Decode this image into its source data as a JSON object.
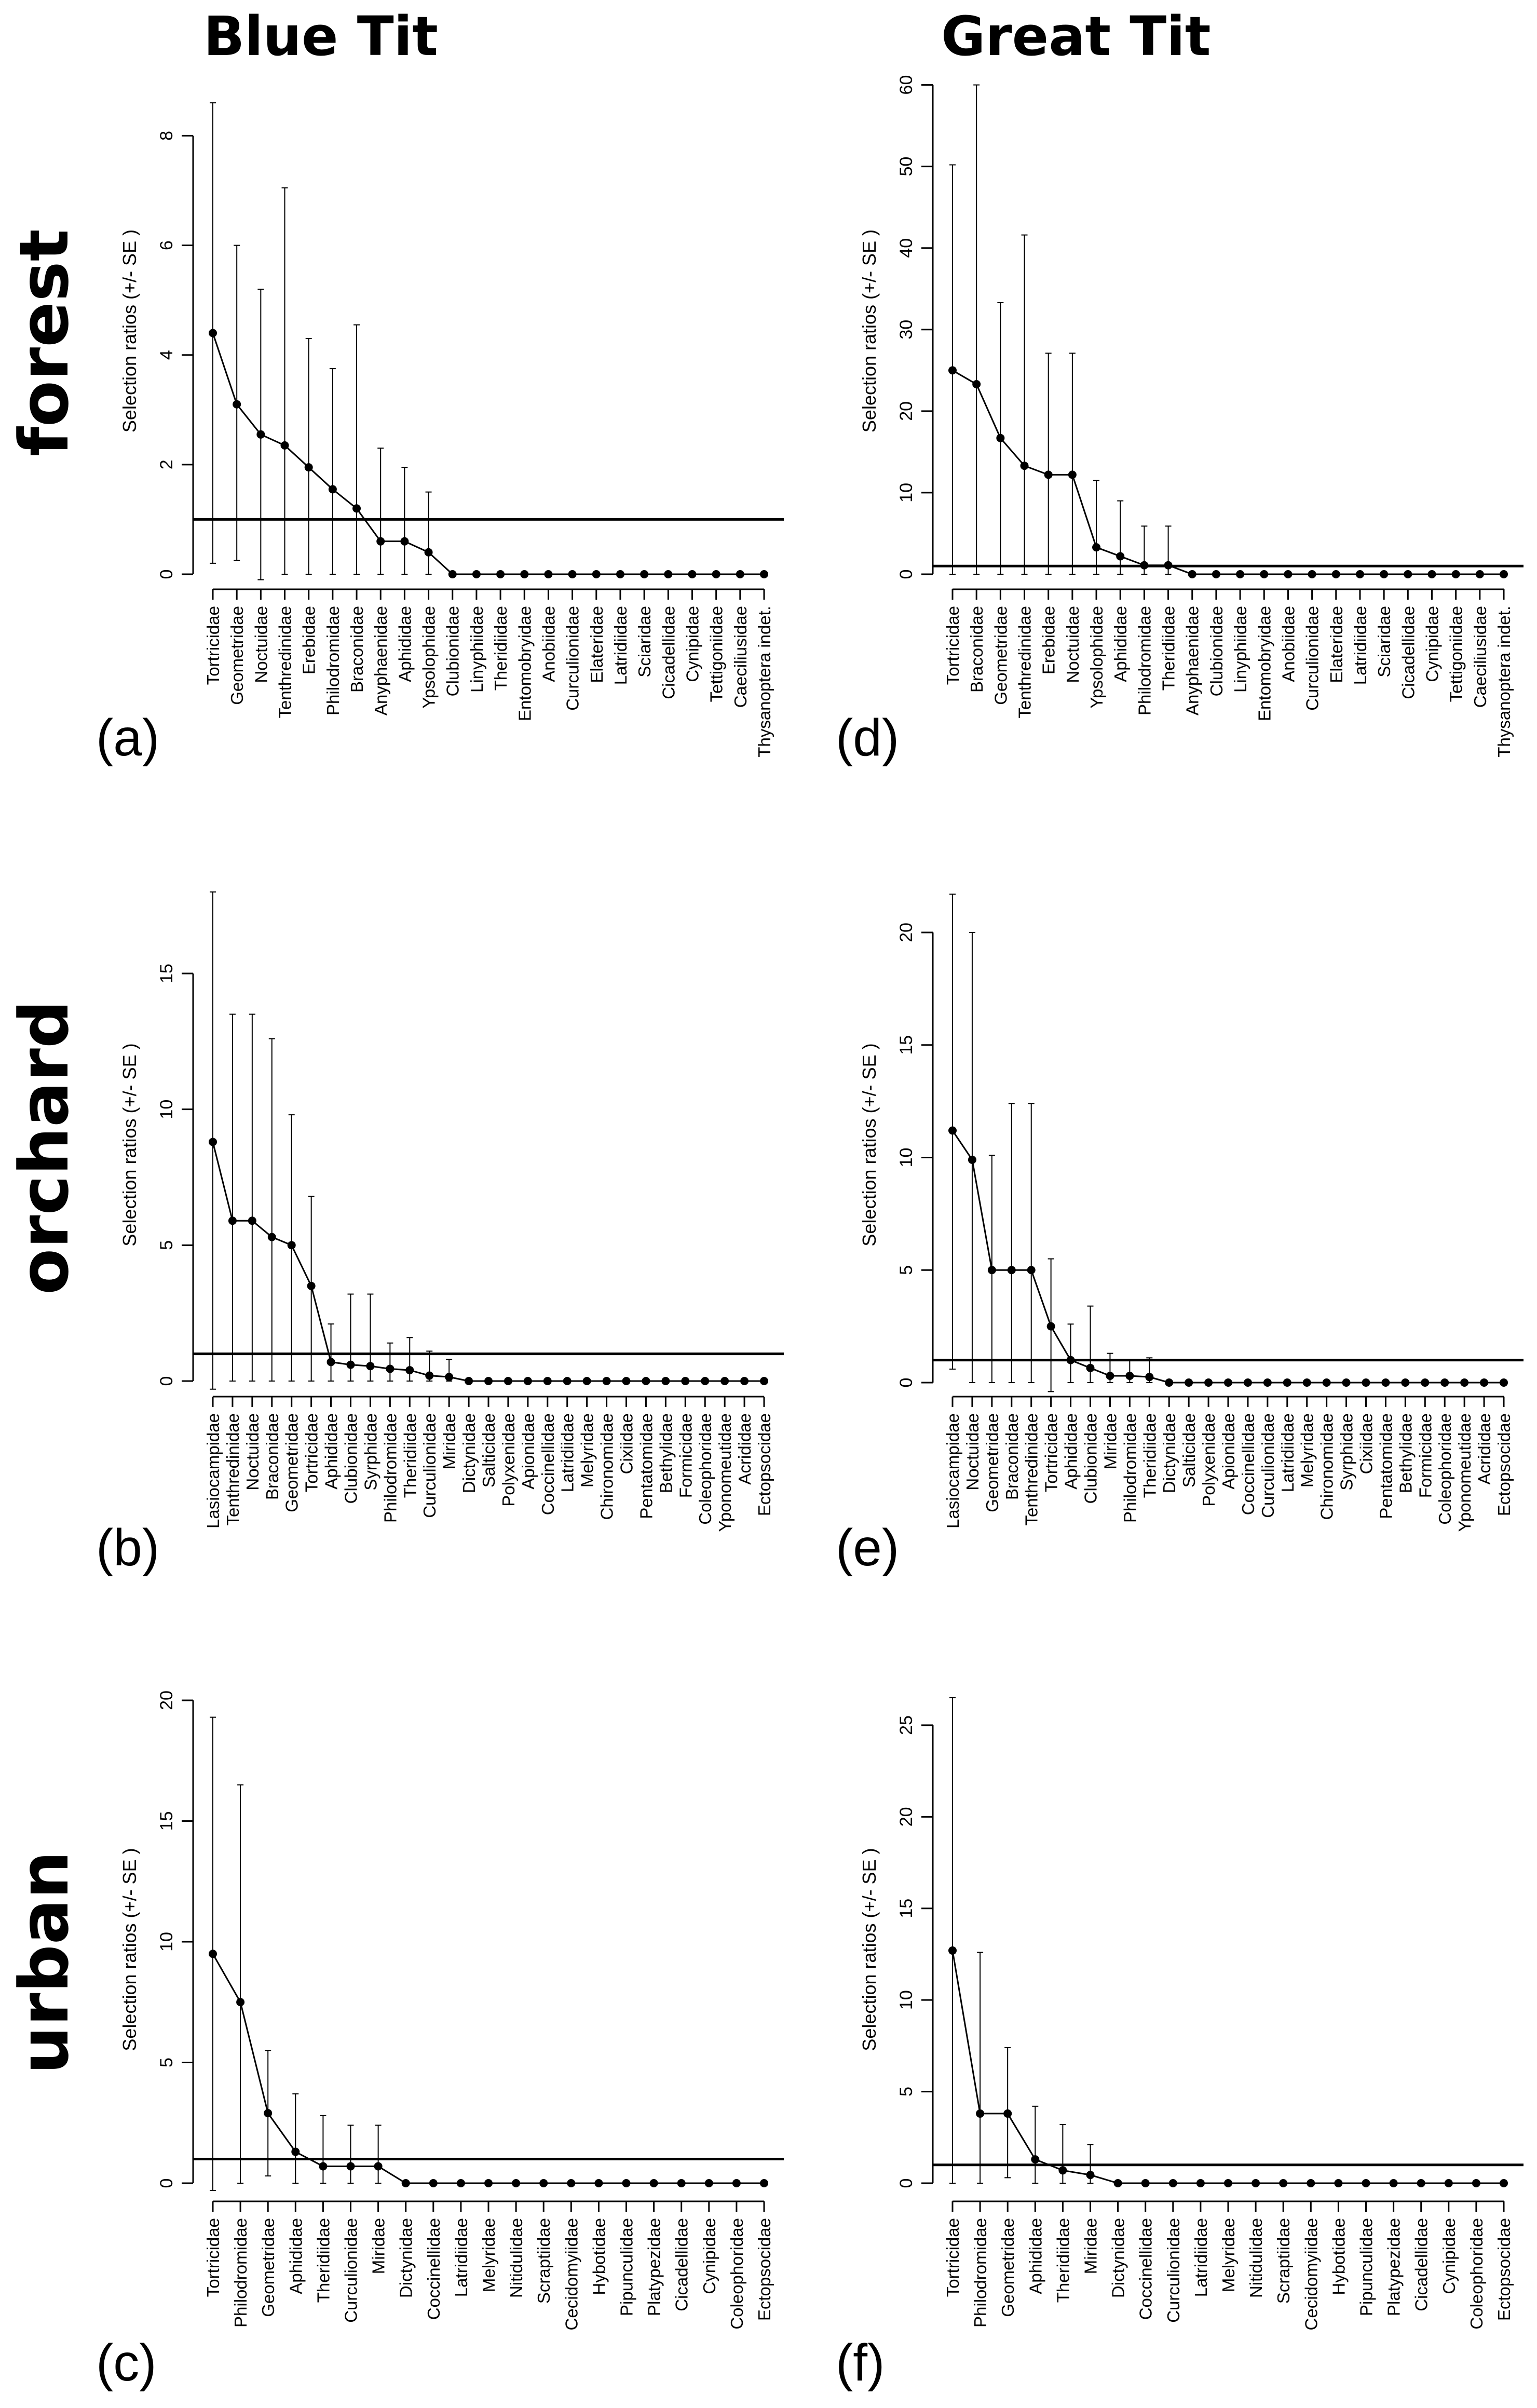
{
  "column_titles": [
    "Blue Tit",
    "Great Tit"
  ],
  "row_labels": [
    "forest",
    "orchard",
    "urban"
  ],
  "chart_data": [
    {
      "panel": "(a)",
      "type": "line",
      "ylabel": "Selection ratios (+/- SE )",
      "ylim": [
        0,
        9.15
      ],
      "yticks": [
        0,
        2,
        4,
        6,
        8
      ],
      "reference_line": 1,
      "categories": [
        "Tortricidae",
        "Geometridae",
        "Noctuidae",
        "Tenthredinidae",
        "Erebidae",
        "Philodromidae",
        "Braconidae",
        "Anyphaenidae",
        "Aphididae",
        "Ypsolophidae",
        "Clubionidae",
        "Linyphiidae",
        "Theridiidae",
        "Entomobryidae",
        "Anobiidae",
        "Curculionidae",
        "Elateridae",
        "Latridiidae",
        "Sciaridae",
        "Cicadellidae",
        "Cynipidae",
        "Tettigoniidae",
        "Caeciliusidae",
        "Thysanoptera indet."
      ],
      "values": [
        4.4,
        3.1,
        2.55,
        2.35,
        1.95,
        1.55,
        1.2,
        0.6,
        0.6,
        0.4,
        0,
        0,
        0,
        0,
        0,
        0,
        0,
        0,
        0,
        0,
        0,
        0,
        0,
        0
      ],
      "error_bars": [
        [
          0.2,
          8.6
        ],
        [
          0.25,
          6.0
        ],
        [
          -0.1,
          5.2
        ],
        [
          0,
          7.05
        ],
        [
          0,
          4.3
        ],
        [
          0,
          3.75
        ],
        [
          0,
          4.55
        ],
        [
          0,
          2.3
        ],
        [
          0,
          1.95
        ],
        [
          0,
          1.5
        ],
        null,
        null,
        null,
        null,
        null,
        null,
        null,
        null,
        null,
        null,
        null,
        null,
        null,
        null
      ]
    },
    {
      "panel": "(b)",
      "type": "line",
      "ylabel": "Selection ratios (+/- SE )",
      "ylim": [
        0,
        18
      ],
      "yticks": [
        0,
        5,
        10,
        15
      ],
      "reference_line": 1,
      "categories": [
        "Lasiocampidae",
        "Tenthredinidae",
        "Noctuidae",
        "Braconidae",
        "Geometridae",
        "Tortricidae",
        "Aphididae",
        "Clubionidae",
        "Syrphidae",
        "Philodromidae",
        "Theridiidae",
        "Curculionidae",
        "Miridae",
        "Dictynidae",
        "Salticidae",
        "Polyxenidae",
        "Apionidae",
        "Coccinellidae",
        "Latridiidae",
        "Melyridae",
        "Chironomidae",
        "Cixiidae",
        "Pentatomidae",
        "Bethylidae",
        "Formicidae",
        "Coleophoridae",
        "Yponomeutidae",
        "Acrididae",
        "Ectopsocidae"
      ],
      "values": [
        8.8,
        5.9,
        5.9,
        5.3,
        5.0,
        3.5,
        0.7,
        0.6,
        0.55,
        0.45,
        0.4,
        0.2,
        0.15,
        0,
        0,
        0,
        0,
        0,
        0,
        0,
        0,
        0,
        0,
        0,
        0,
        0,
        0,
        0,
        0
      ],
      "error_bars": [
        [
          -0.3,
          18.0
        ],
        [
          0,
          13.5
        ],
        [
          0,
          13.5
        ],
        [
          0,
          12.6
        ],
        [
          0,
          9.8
        ],
        [
          0,
          6.8
        ],
        [
          0,
          2.1
        ],
        [
          0,
          3.2
        ],
        [
          0,
          3.2
        ],
        [
          0,
          1.4
        ],
        [
          0,
          1.6
        ],
        [
          0,
          1.1
        ],
        [
          0,
          0.8
        ],
        null,
        null,
        null,
        null,
        null,
        null,
        null,
        null,
        null,
        null,
        null,
        null,
        null,
        null,
        null,
        null
      ]
    },
    {
      "panel": "(c)",
      "type": "line",
      "ylabel": "Selection ratios (+/- SE )",
      "ylim": [
        0,
        20
      ],
      "yticks": [
        0,
        5,
        10,
        15,
        20
      ],
      "reference_line": 1,
      "categories": [
        "Tortricidae",
        "Philodromidae",
        "Geometridae",
        "Aphididae",
        "Theridiidae",
        "Curculionidae",
        "Miridae",
        "Dictynidae",
        "Coccinellidae",
        "Latridiidae",
        "Melyridae",
        "Nitidulidae",
        "Scraptiidae",
        "Cecidomyiidae",
        "Hybotidae",
        "Pipunculidae",
        "Platypezidae",
        "Cicadellidae",
        "Cynipidae",
        "Coleophoridae",
        "Ectopsocidae"
      ],
      "values": [
        9.5,
        7.5,
        2.9,
        1.3,
        0.7,
        0.7,
        0.7,
        0,
        0,
        0,
        0,
        0,
        0,
        0,
        0,
        0,
        0,
        0,
        0,
        0,
        0
      ],
      "error_bars": [
        [
          -0.3,
          19.3
        ],
        [
          0,
          16.5
        ],
        [
          0.3,
          5.5
        ],
        [
          0,
          3.7
        ],
        [
          0,
          2.8
        ],
        [
          0,
          2.4
        ],
        [
          0,
          2.4
        ],
        null,
        null,
        null,
        null,
        null,
        null,
        null,
        null,
        null,
        null,
        null,
        null,
        null,
        null
      ]
    },
    {
      "panel": "(d)",
      "type": "line",
      "ylabel": "Selection ratios (+/- SE )",
      "ylim": [
        0,
        61.5
      ],
      "yticks": [
        0,
        10,
        20,
        30,
        40,
        50,
        60
      ],
      "reference_line": 1,
      "categories": [
        "Tortricidae",
        "Braconidae",
        "Geometridae",
        "Tenthredinidae",
        "Erebidae",
        "Noctuidae",
        "Ypsolophidae",
        "Aphididae",
        "Philodromidae",
        "Theridiidae",
        "Anyphaenidae",
        "Clubionidae",
        "Linyphiidae",
        "Entomobryidae",
        "Anobiidae",
        "Curculionidae",
        "Elateridae",
        "Latridiidae",
        "Sciaridae",
        "Cicadellidae",
        "Cynipidae",
        "Tettigoniidae",
        "Caeciliusidae",
        "Thysanoptera indet."
      ],
      "values": [
        25.0,
        23.3,
        16.7,
        13.3,
        12.2,
        12.2,
        3.3,
        2.2,
        1.1,
        1.1,
        0,
        0,
        0,
        0,
        0,
        0,
        0,
        0,
        0,
        0,
        0,
        0,
        0,
        0
      ],
      "error_bars": [
        [
          0,
          50.2
        ],
        [
          0,
          60.0
        ],
        [
          0,
          33.3
        ],
        [
          0,
          41.6
        ],
        [
          0,
          27.1
        ],
        [
          0,
          27.1
        ],
        [
          0,
          11.5
        ],
        [
          0,
          9.0
        ],
        [
          0,
          5.9
        ],
        [
          0,
          5.9
        ],
        null,
        null,
        null,
        null,
        null,
        null,
        null,
        null,
        null,
        null,
        null,
        null,
        null,
        null
      ]
    },
    {
      "panel": "(e)",
      "type": "line",
      "ylabel": "Selection ratios (+/- SE )",
      "ylim": [
        0,
        21.8
      ],
      "yticks": [
        0,
        5,
        10,
        15,
        20
      ],
      "reference_line": 1,
      "categories": [
        "Lasiocampidae",
        "Noctuidae",
        "Geometridae",
        "Braconidae",
        "Tenthredinidae",
        "Tortricidae",
        "Aphididae",
        "Clubionidae",
        "Miridae",
        "Philodromidae",
        "Theridiidae",
        "Dictynidae",
        "Salticidae",
        "Polyxenidae",
        "Apionidae",
        "Coccinellidae",
        "Curculionidae",
        "Latridiidae",
        "Melyridae",
        "Chironomidae",
        "Syrphidae",
        "Cixiidae",
        "Pentatomidae",
        "Bethylidae",
        "Formicidae",
        "Coleophoridae",
        "Yponomeutidae",
        "Acrididae",
        "Ectopsocidae"
      ],
      "values": [
        11.2,
        9.9,
        5.0,
        5.0,
        5.0,
        2.5,
        1.0,
        0.65,
        0.3,
        0.3,
        0.25,
        0,
        0,
        0,
        0,
        0,
        0,
        0,
        0,
        0,
        0,
        0,
        0,
        0,
        0,
        0,
        0,
        0,
        0
      ],
      "error_bars": [
        [
          0.6,
          21.7
        ],
        [
          0,
          20.0
        ],
        [
          0,
          10.1
        ],
        [
          0,
          12.4
        ],
        [
          0,
          12.4
        ],
        [
          -0.4,
          5.5
        ],
        [
          0,
          2.6
        ],
        [
          0,
          3.4
        ],
        [
          0,
          1.3
        ],
        [
          0,
          1.0
        ],
        [
          0,
          1.1
        ],
        null,
        null,
        null,
        null,
        null,
        null,
        null,
        null,
        null,
        null,
        null,
        null,
        null,
        null,
        null,
        null,
        null,
        null
      ]
    },
    {
      "panel": "(f)",
      "type": "line",
      "ylabel": "Selection ratios (+/- SE )",
      "ylim": [
        0,
        26.5
      ],
      "yticks": [
        0,
        5,
        10,
        15,
        20,
        25
      ],
      "reference_line": 1,
      "categories": [
        "Tortricidae",
        "Philodromidae",
        "Geometridae",
        "Aphididae",
        "Theridiidae",
        "Miridae",
        "Dictynidae",
        "Coccinellidae",
        "Curculionidae",
        "Latridiidae",
        "Melyridae",
        "Nitidulidae",
        "Scraptiidae",
        "Cecidomyiidae",
        "Hybotidae",
        "Pipunculidae",
        "Platypezidae",
        "Cicadellidae",
        "Cynipidae",
        "Coleophoridae",
        "Ectopsocidae"
      ],
      "values": [
        12.7,
        3.8,
        3.8,
        1.3,
        0.7,
        0.45,
        0,
        0,
        0,
        0,
        0,
        0,
        0,
        0,
        0,
        0,
        0,
        0,
        0,
        0,
        0
      ],
      "error_bars": [
        [
          0,
          26.5
        ],
        [
          0,
          12.6
        ],
        [
          0.3,
          7.4
        ],
        [
          0,
          4.2
        ],
        [
          0,
          3.2
        ],
        [
          0,
          2.1
        ],
        null,
        null,
        null,
        null,
        null,
        null,
        null,
        null,
        null,
        null,
        null,
        null,
        null,
        null,
        null
      ]
    }
  ]
}
